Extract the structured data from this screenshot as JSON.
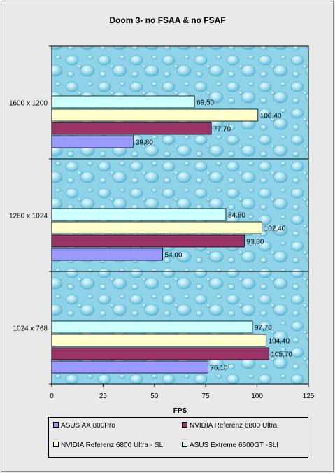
{
  "chart_data": {
    "type": "bar",
    "orientation": "horizontal",
    "title": "Doom 3- no FSAA & no FSAF",
    "xlabel": "FPS",
    "ylabel": "",
    "xlim": [
      0,
      125
    ],
    "xticks": [
      0,
      25,
      50,
      75,
      100,
      125
    ],
    "grid": false,
    "legend_position": "bottom",
    "categories": [
      "1600 x 1200",
      "1280 x 1024",
      "1024 x 768"
    ],
    "series": [
      {
        "name": "ASUS AX 800Pro",
        "color": "#9999ff",
        "values": [
          39.8,
          54.0,
          76.1
        ],
        "labels": [
          "39,80",
          "54,00",
          "76,10"
        ]
      },
      {
        "name": "NVIDIA  Referenz 6800 Ultra",
        "color": "#993366",
        "values": [
          77.7,
          93.8,
          105.7
        ],
        "labels": [
          "77,70",
          "93,80",
          "105,70"
        ]
      },
      {
        "name": "NVIDIA  Referenz 6800 Ultra - SLI",
        "color": "#ffffcc",
        "values": [
          100.4,
          102.4,
          104.4
        ],
        "labels": [
          "100,40",
          "102,40",
          "104,40"
        ]
      },
      {
        "name": "ASUS Extreme 6600GT -SLI",
        "color": "#ccffff",
        "values": [
          69.5,
          84.8,
          97.7
        ],
        "labels": [
          "69,50",
          "84,80",
          "97,70"
        ]
      }
    ]
  }
}
